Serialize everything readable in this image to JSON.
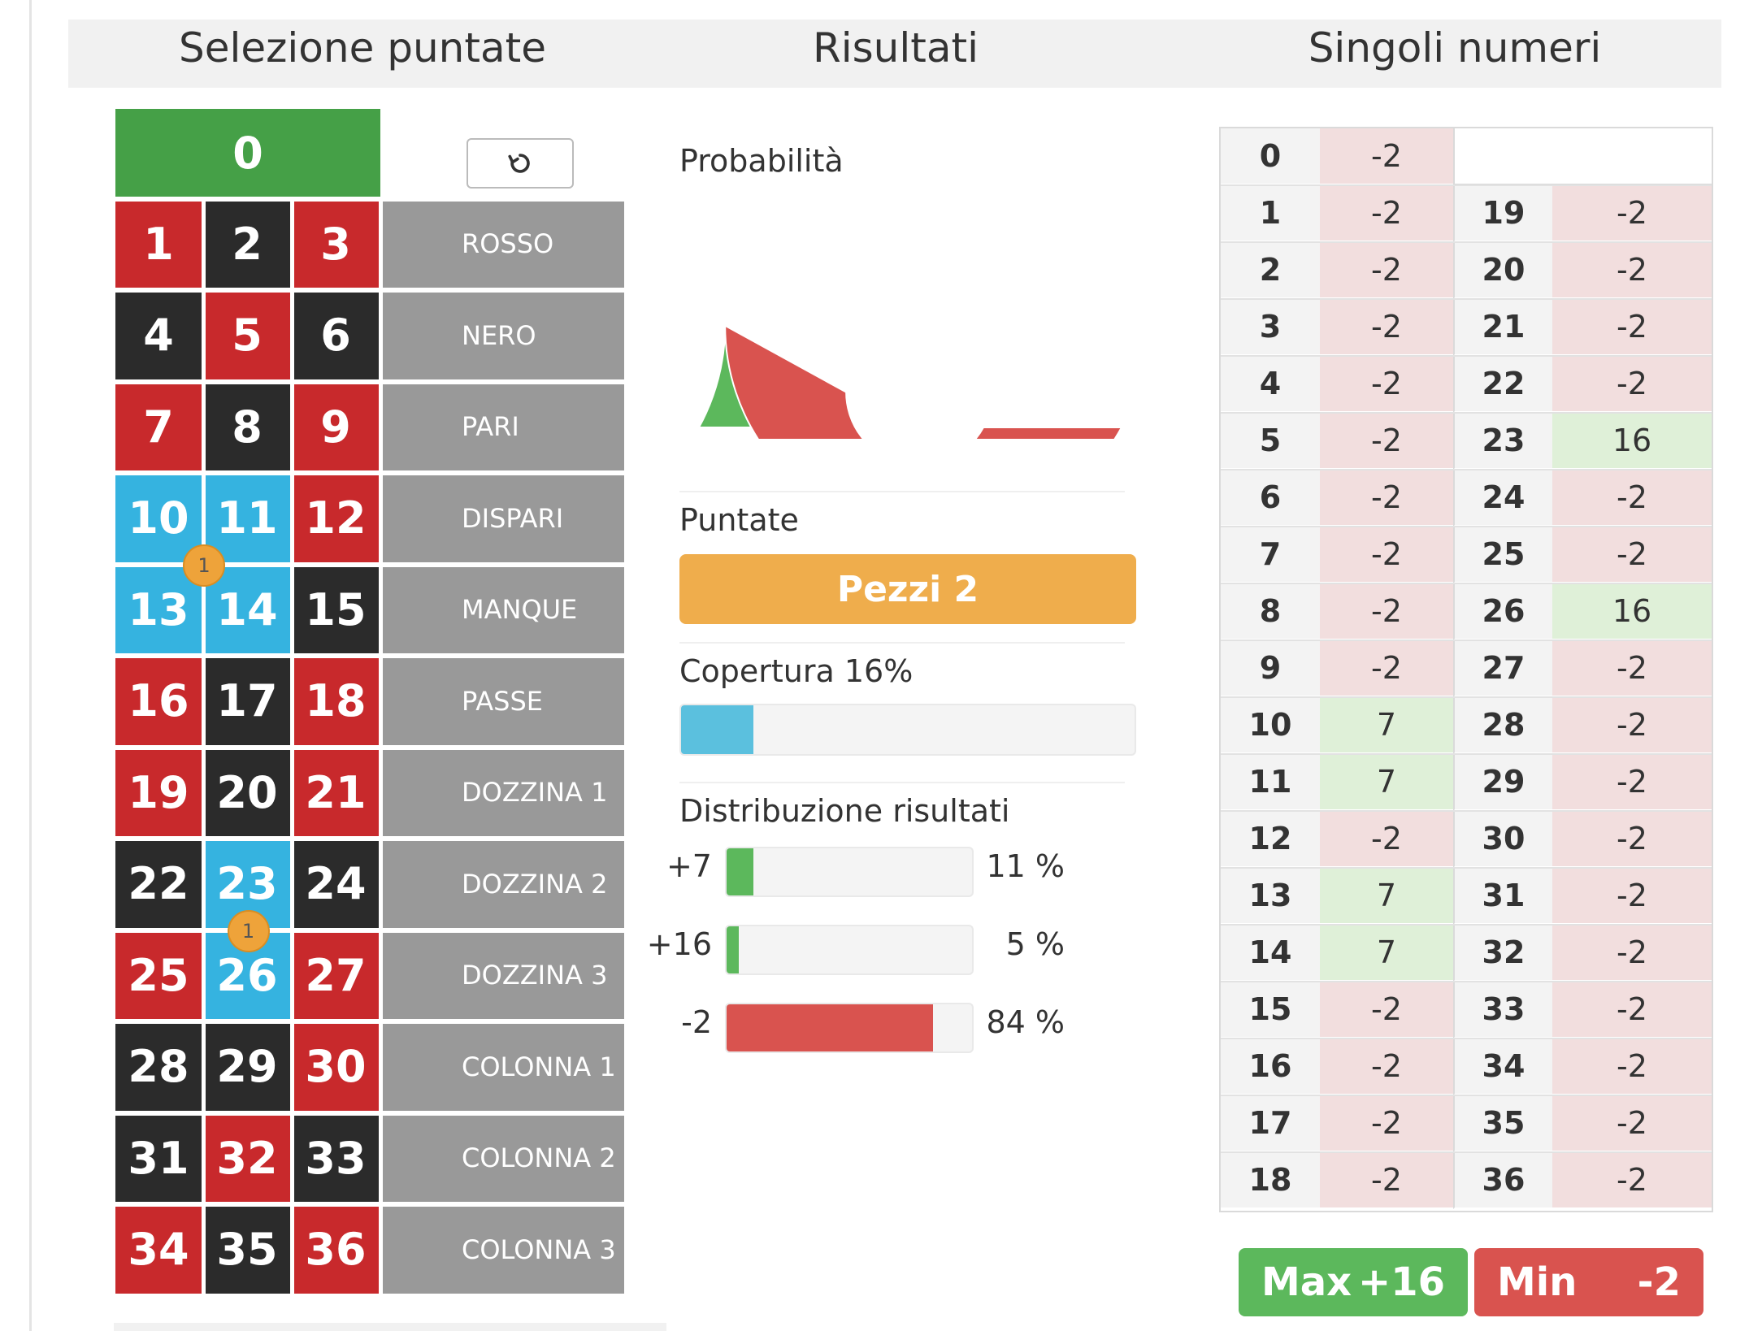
{
  "headers": {
    "selection": "Selezione puntate",
    "results": "Risultati",
    "single_numbers": "Singoli numeri"
  },
  "board": {
    "zero": "0",
    "undo_icon": "undo-icon",
    "rows": [
      [
        {
          "n": "1",
          "c": "red"
        },
        {
          "n": "2",
          "c": "black"
        },
        {
          "n": "3",
          "c": "red"
        }
      ],
      [
        {
          "n": "4",
          "c": "black"
        },
        {
          "n": "5",
          "c": "red"
        },
        {
          "n": "6",
          "c": "black"
        }
      ],
      [
        {
          "n": "7",
          "c": "red"
        },
        {
          "n": "8",
          "c": "black"
        },
        {
          "n": "9",
          "c": "red"
        }
      ],
      [
        {
          "n": "10",
          "c": "sel"
        },
        {
          "n": "11",
          "c": "sel"
        },
        {
          "n": "12",
          "c": "red"
        }
      ],
      [
        {
          "n": "13",
          "c": "sel"
        },
        {
          "n": "14",
          "c": "sel"
        },
        {
          "n": "15",
          "c": "black"
        }
      ],
      [
        {
          "n": "16",
          "c": "red"
        },
        {
          "n": "17",
          "c": "black"
        },
        {
          "n": "18",
          "c": "red"
        }
      ],
      [
        {
          "n": "19",
          "c": "red"
        },
        {
          "n": "20",
          "c": "black"
        },
        {
          "n": "21",
          "c": "red"
        }
      ],
      [
        {
          "n": "22",
          "c": "black"
        },
        {
          "n": "23",
          "c": "sel"
        },
        {
          "n": "24",
          "c": "black"
        }
      ],
      [
        {
          "n": "25",
          "c": "red"
        },
        {
          "n": "26",
          "c": "sel"
        },
        {
          "n": "27",
          "c": "red"
        }
      ],
      [
        {
          "n": "28",
          "c": "black"
        },
        {
          "n": "29",
          "c": "black"
        },
        {
          "n": "30",
          "c": "red"
        }
      ],
      [
        {
          "n": "31",
          "c": "black"
        },
        {
          "n": "32",
          "c": "red"
        },
        {
          "n": "33",
          "c": "black"
        }
      ],
      [
        {
          "n": "34",
          "c": "red"
        },
        {
          "n": "35",
          "c": "black"
        },
        {
          "n": "36",
          "c": "red"
        }
      ]
    ],
    "outside_bets": [
      "ROSSO",
      "NERO",
      "PARI",
      "DISPARI",
      "MANQUE",
      "PASSE",
      "DOZZINA 1",
      "DOZZINA 2",
      "DOZZINA 3",
      "COLONNA 1",
      "COLONNA 2",
      "COLONNA 3"
    ],
    "chips": [
      {
        "label": "1",
        "bet": "10-11-13-14"
      },
      {
        "label": "1",
        "bet": "23-26"
      }
    ]
  },
  "results": {
    "probability_label": "Probabilità",
    "bets_label": "Puntate",
    "pieces_button": "Pezzi 2",
    "coverage_label": "Copertura 16%",
    "coverage_fraction": 0.16,
    "distribution_label": "Distribuzione risultati",
    "distribution": [
      {
        "outcome": "+7",
        "percent_label": "11 %",
        "fraction": 0.11,
        "color": "#5cb85c"
      },
      {
        "outcome": "+16",
        "percent_label": "5 %",
        "fraction": 0.05,
        "color": "#5cb85c"
      },
      {
        "outcome": "-2",
        "percent_label": "84 %",
        "fraction": 0.84,
        "color": "#d9534f"
      }
    ],
    "gauge": {
      "win_fraction": 0.16,
      "lose_fraction": 0.84,
      "win_color": "#5cb85c",
      "lose_color": "#d9534f"
    }
  },
  "single_numbers": {
    "left": [
      {
        "n": "0",
        "v": "-2"
      },
      {
        "n": "1",
        "v": "-2"
      },
      {
        "n": "2",
        "v": "-2"
      },
      {
        "n": "3",
        "v": "-2"
      },
      {
        "n": "4",
        "v": "-2"
      },
      {
        "n": "5",
        "v": "-2"
      },
      {
        "n": "6",
        "v": "-2"
      },
      {
        "n": "7",
        "v": "-2"
      },
      {
        "n": "8",
        "v": "-2"
      },
      {
        "n": "9",
        "v": "-2"
      },
      {
        "n": "10",
        "v": "7"
      },
      {
        "n": "11",
        "v": "7"
      },
      {
        "n": "12",
        "v": "-2"
      },
      {
        "n": "13",
        "v": "7"
      },
      {
        "n": "14",
        "v": "7"
      },
      {
        "n": "15",
        "v": "-2"
      },
      {
        "n": "16",
        "v": "-2"
      },
      {
        "n": "17",
        "v": "-2"
      },
      {
        "n": "18",
        "v": "-2"
      }
    ],
    "right": [
      {
        "n": "19",
        "v": "-2"
      },
      {
        "n": "20",
        "v": "-2"
      },
      {
        "n": "21",
        "v": "-2"
      },
      {
        "n": "22",
        "v": "-2"
      },
      {
        "n": "23",
        "v": "16"
      },
      {
        "n": "24",
        "v": "-2"
      },
      {
        "n": "25",
        "v": "-2"
      },
      {
        "n": "26",
        "v": "16"
      },
      {
        "n": "27",
        "v": "-2"
      },
      {
        "n": "28",
        "v": "-2"
      },
      {
        "n": "29",
        "v": "-2"
      },
      {
        "n": "30",
        "v": "-2"
      },
      {
        "n": "31",
        "v": "-2"
      },
      {
        "n": "32",
        "v": "-2"
      },
      {
        "n": "33",
        "v": "-2"
      },
      {
        "n": "34",
        "v": "-2"
      },
      {
        "n": "35",
        "v": "-2"
      },
      {
        "n": "36",
        "v": "-2"
      }
    ],
    "max_label": "Max",
    "max_value": "+16",
    "min_label": "Min",
    "min_value": "-2"
  }
}
